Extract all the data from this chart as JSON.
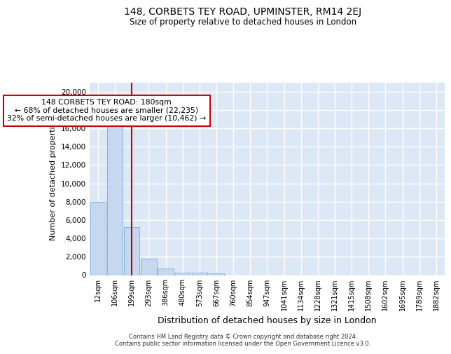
{
  "title_line1": "148, CORBETS TEY ROAD, UPMINSTER, RM14 2EJ",
  "title_line2": "Size of property relative to detached houses in London",
  "xlabel": "Distribution of detached houses by size in London",
  "ylabel": "Number of detached properties",
  "bar_labels": [
    "12sqm",
    "106sqm",
    "199sqm",
    "293sqm",
    "386sqm",
    "480sqm",
    "573sqm",
    "667sqm",
    "760sqm",
    "854sqm",
    "947sqm",
    "1041sqm",
    "1134sqm",
    "1228sqm",
    "1321sqm",
    "1415sqm",
    "1508sqm",
    "1602sqm",
    "1695sqm",
    "1789sqm",
    "1882sqm"
  ],
  "bar_heights": [
    8000,
    16500,
    5200,
    1800,
    750,
    250,
    250,
    200,
    0,
    0,
    0,
    0,
    0,
    0,
    0,
    0,
    0,
    0,
    0,
    0,
    0
  ],
  "bar_color": "#c5d8f0",
  "bar_edge_color": "#7aadd4",
  "bg_color": "#dce8f5",
  "grid_color": "#ffffff",
  "property_line_x": 2.0,
  "annotation_text": "148 CORBETS TEY ROAD: 180sqm\n← 68% of detached houses are smaller (22,235)\n32% of semi-detached houses are larger (10,462) →",
  "annotation_box_color": "#cc0000",
  "ylim": [
    0,
    21000
  ],
  "yticks": [
    0,
    2000,
    4000,
    6000,
    8000,
    10000,
    12000,
    14000,
    16000,
    18000,
    20000
  ],
  "footer_line1": "Contains HM Land Registry data © Crown copyright and database right 2024.",
  "footer_line2": "Contains public sector information licensed under the Open Government Licence v3.0."
}
